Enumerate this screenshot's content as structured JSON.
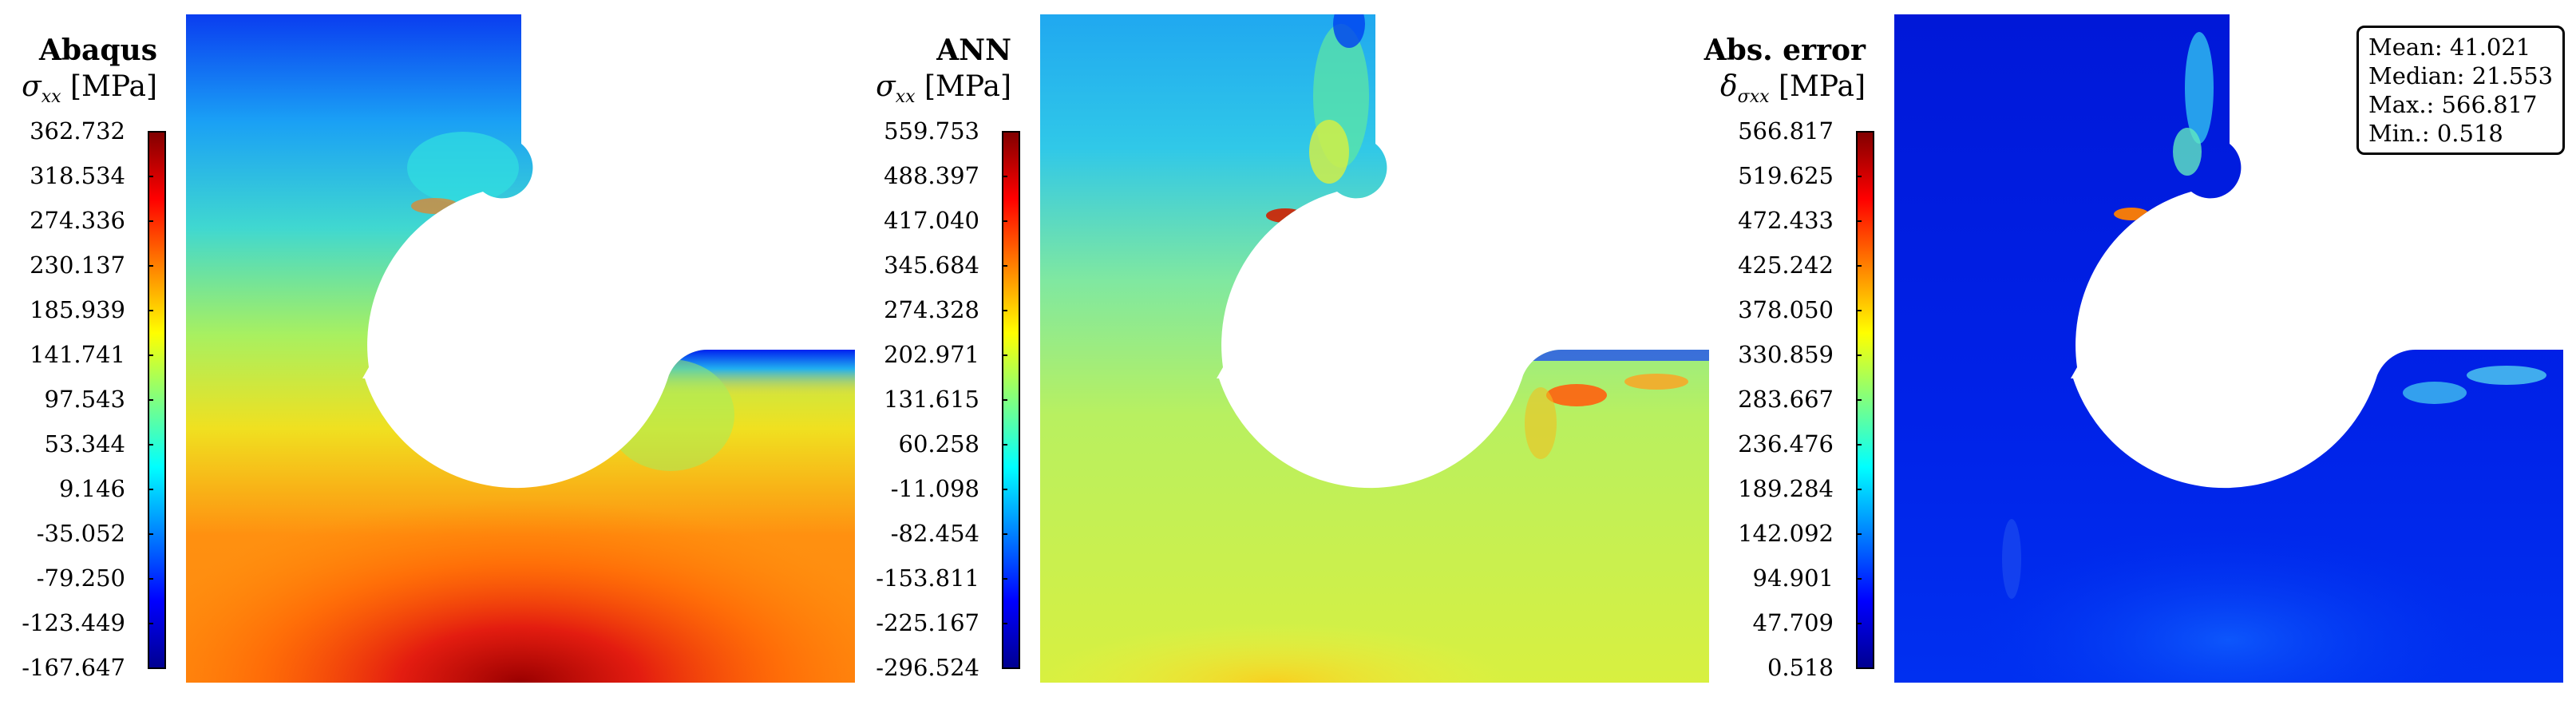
{
  "chart_data": [
    {
      "type": "heatmap",
      "title": "Abaqus",
      "quantity": {
        "symbol": "σ",
        "subscript": "xx",
        "unit": "[MPa]"
      },
      "colorbar": {
        "ticks": [
          "362.732",
          "318.534",
          "274.336",
          "230.137",
          "185.939",
          "141.741",
          "97.543",
          "53.344",
          "9.146",
          "-35.052",
          "-79.250",
          "-123.449",
          "-167.647"
        ],
        "min": -167.647,
        "max": 362.732
      },
      "field_description": "High stress (red) along bottom edge below hole, low (blue) near top-left corner and upper notch"
    },
    {
      "type": "heatmap",
      "title": "ANN",
      "quantity": {
        "symbol": "σ",
        "subscript": "xx",
        "unit": "[MPa]"
      },
      "colorbar": {
        "ticks": [
          "559.753",
          "488.397",
          "417.040",
          "345.684",
          "274.328",
          "202.971",
          "131.615",
          "60.258",
          "-11.098",
          "-82.454",
          "-153.811",
          "-225.167",
          "-296.524"
        ],
        "min": -296.524,
        "max": 559.753
      }
    },
    {
      "type": "heatmap",
      "title": "Abs. error",
      "quantity": {
        "symbol": "δ",
        "subscript": "σxx",
        "unit": "[MPa]"
      },
      "colorbar": {
        "ticks": [
          "566.817",
          "519.625",
          "472.433",
          "425.242",
          "378.050",
          "330.859",
          "283.667",
          "236.476",
          "189.284",
          "142.092",
          "94.901",
          "47.709",
          "0.518"
        ],
        "min": 0.518,
        "max": 566.817
      },
      "stats": [
        {
          "label": "Mean:",
          "value": "41.021"
        },
        {
          "label": "Median:",
          "value": "21.553"
        },
        {
          "label": "Max.:",
          "value": "566.817"
        },
        {
          "label": "Min.:",
          "value": "0.518"
        }
      ]
    }
  ],
  "colormap": [
    "#00008f",
    "#0000ff",
    "#0080ff",
    "#00ffff",
    "#80ff80",
    "#ffff00",
    "#ff8000",
    "#ff0000",
    "#800000"
  ]
}
